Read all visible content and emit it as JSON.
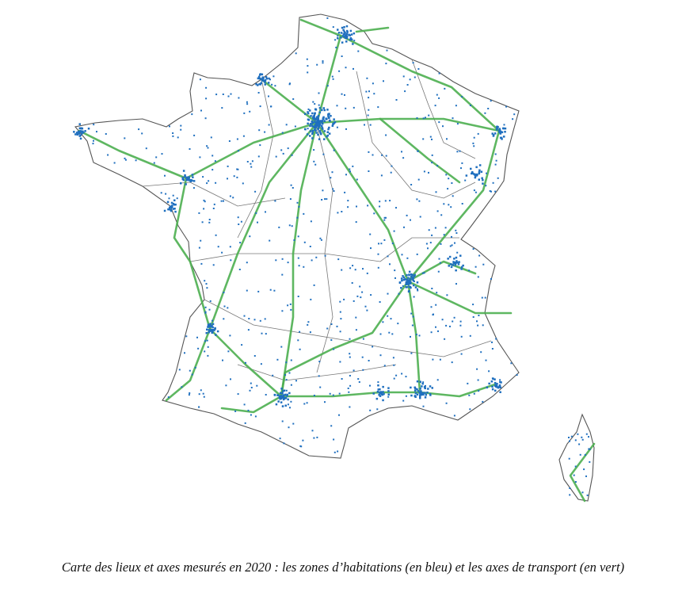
{
  "caption": "Carte des lieux et axes mesurés en 2020 : les zones d’habitations (en bleu) et les axes de transport (en vert)",
  "legend_colors": {
    "habitation_zones": "#1f6fbf",
    "transport_axes": "#4caf50",
    "borders": "#555555"
  }
}
